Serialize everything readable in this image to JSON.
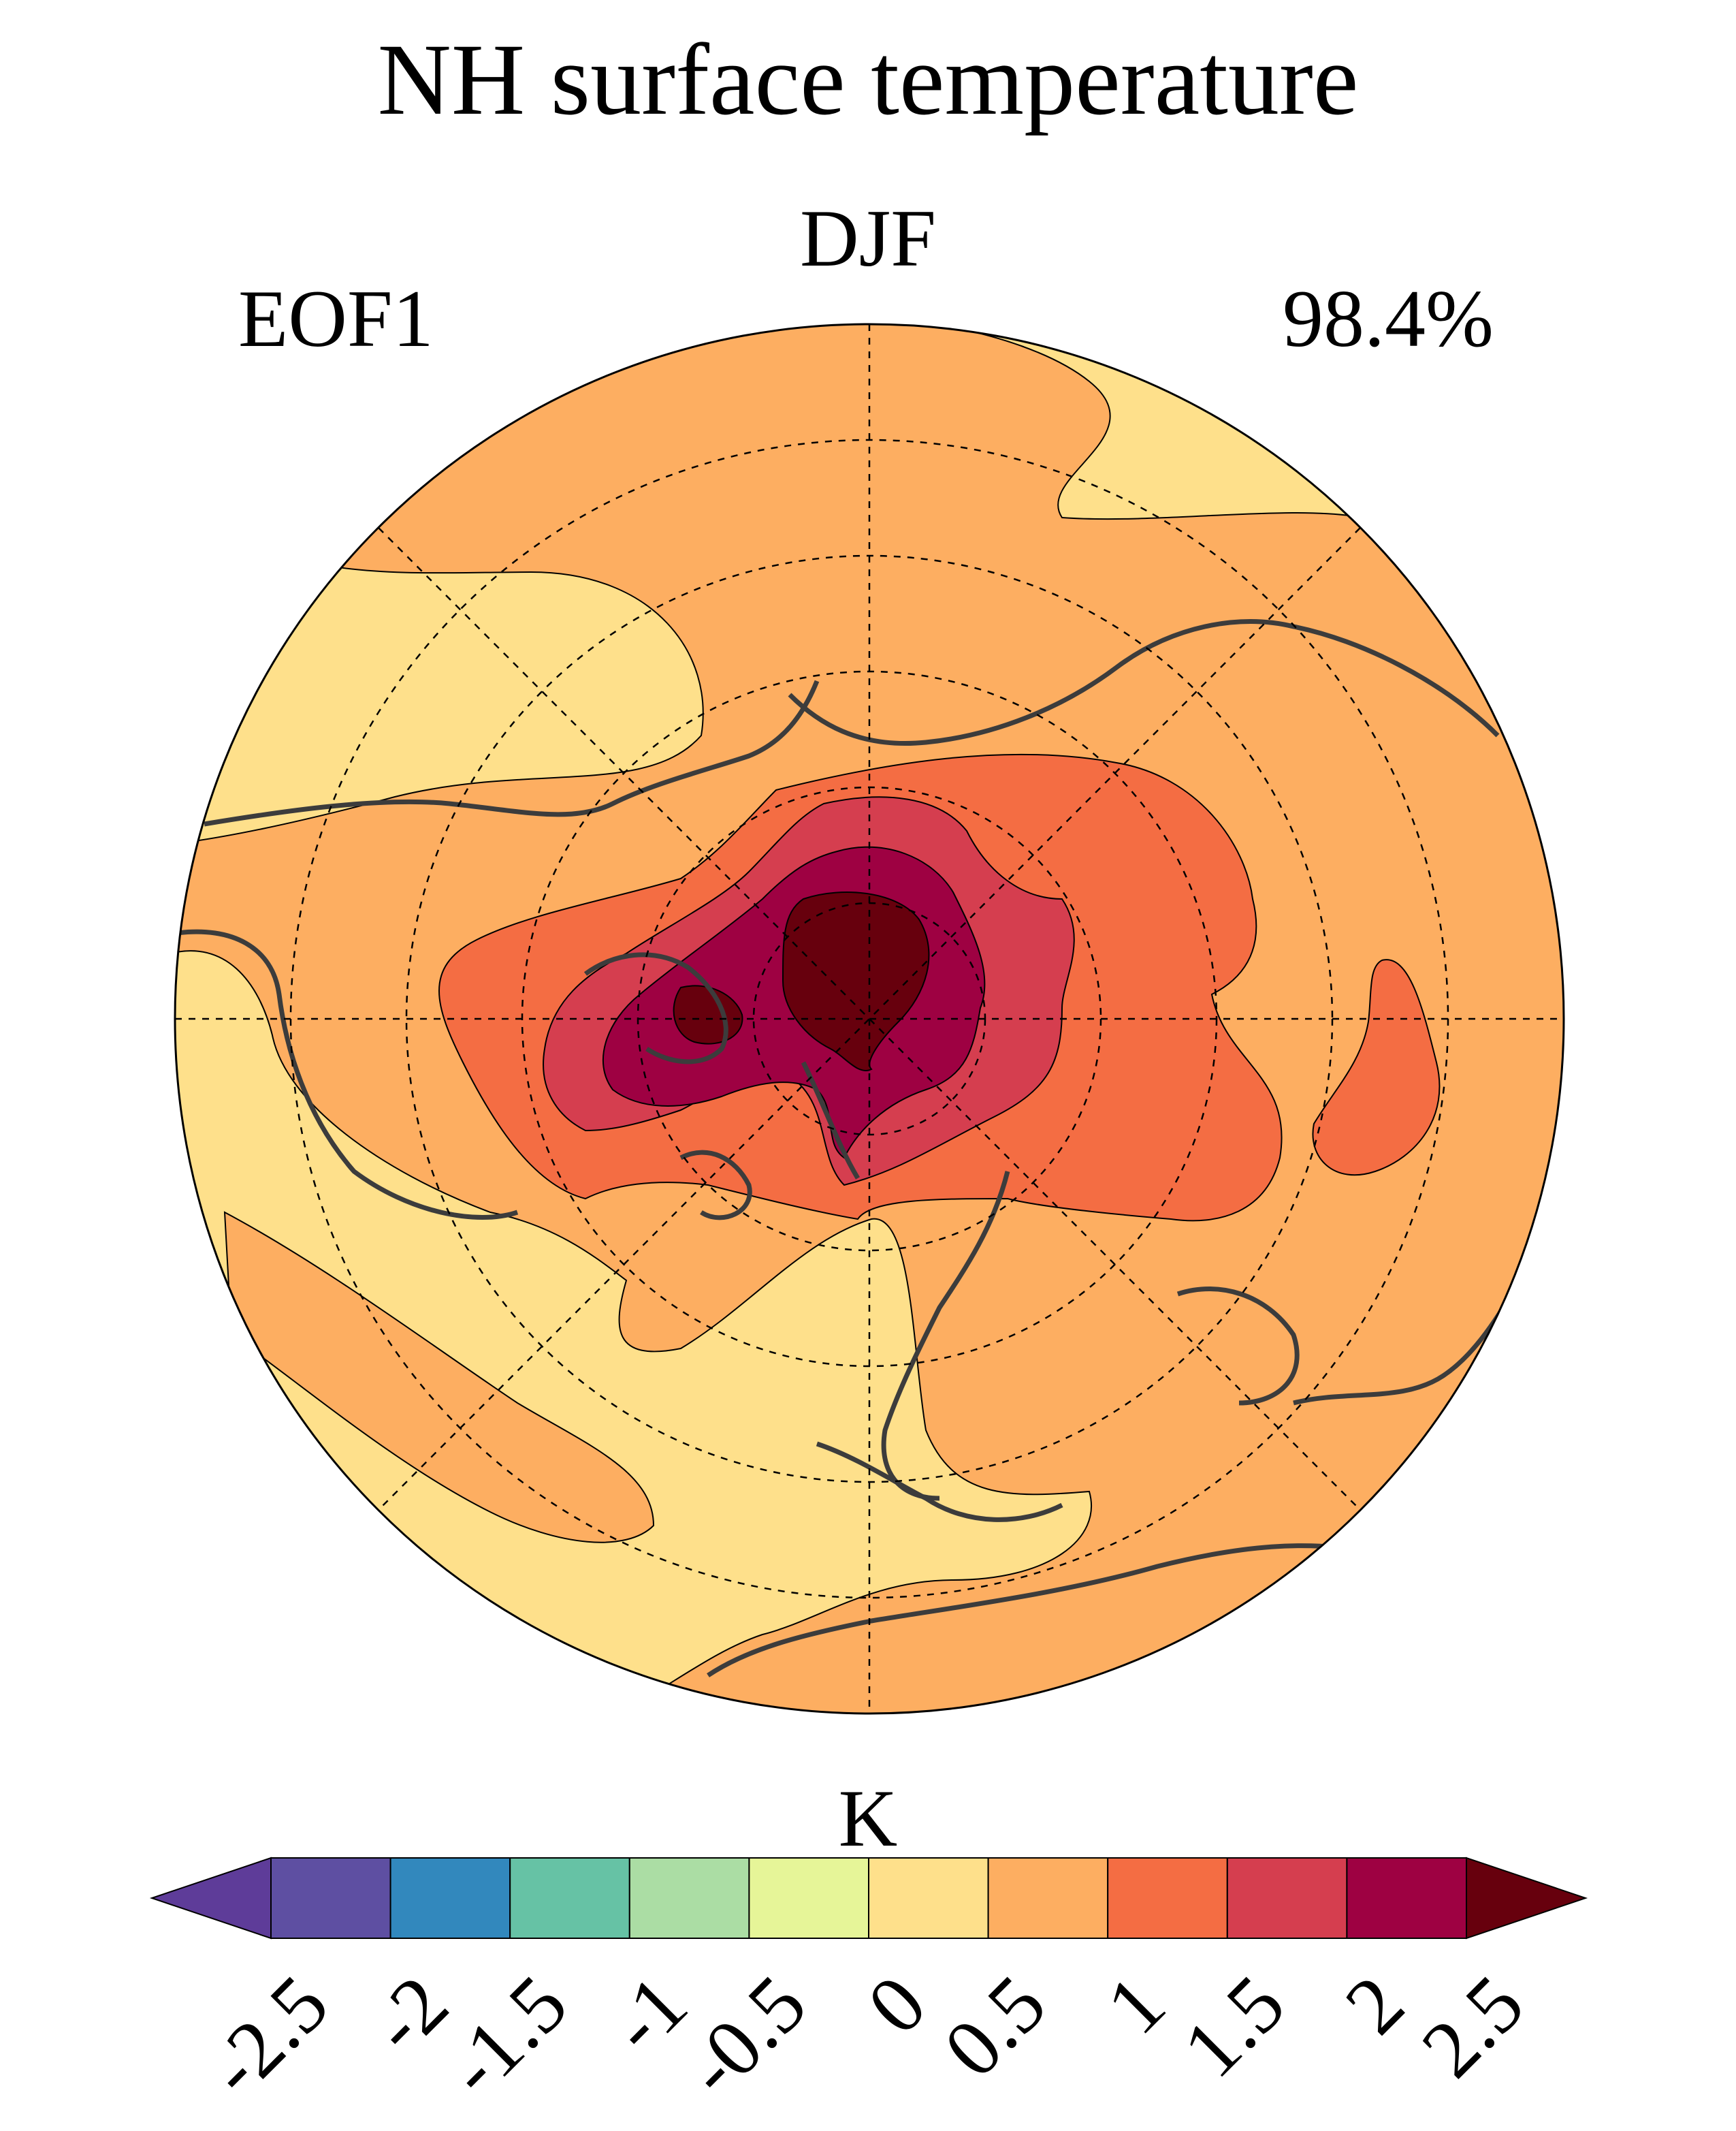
{
  "header": {
    "title": "NH surface temperature",
    "season": "DJF",
    "mode": "EOF1",
    "variance": "98.4%"
  },
  "colorbar": {
    "units": "K",
    "ticks": [
      "-2.5",
      "-2",
      "-1.5",
      "-1",
      "-0.5",
      "0",
      "0.5",
      "1",
      "1.5",
      "2",
      "2.5"
    ],
    "colors": [
      "#5e3c99",
      "#5e4fa2",
      "#3288bd",
      "#66c2a5",
      "#abdda4",
      "#e6f598",
      "#fee08b",
      "#fdae61",
      "#f46d43",
      "#d53e4f",
      "#9e0142",
      "#67000d"
    ]
  },
  "map": {
    "projection": "north-polar-stereographic",
    "graticule": "dashed",
    "field": "EOF1 surface temperature anomaly",
    "max_level_over": "arctic (> 2.5 K)"
  }
}
